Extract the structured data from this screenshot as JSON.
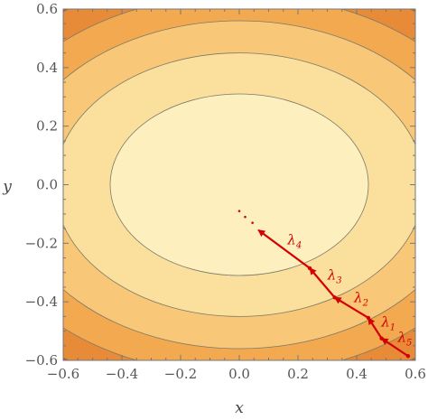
{
  "chart_data": {
    "type": "contour",
    "xlabel": "x",
    "ylabel": "y",
    "xlim": [
      -0.6,
      0.6
    ],
    "ylim": [
      -0.6,
      0.6
    ],
    "xticks": [
      "−0.6",
      "−0.4",
      "−0.2",
      "0.0",
      "0.2",
      "0.4",
      "0.6"
    ],
    "yticks": [
      "−0.6",
      "−0.4",
      "−0.2",
      "0.0",
      "0.2",
      "0.4",
      "0.6"
    ],
    "contours": {
      "center": [
        0.0,
        0.0
      ],
      "semi_axes": [
        [
          0.44,
          0.31
        ],
        [
          0.63,
          0.45
        ],
        [
          0.78,
          0.56
        ],
        [
          0.91,
          0.65
        ],
        [
          1.02,
          0.73
        ]
      ],
      "fill_colors": [
        "#fdf0be",
        "#fbdf9c",
        "#f8c777",
        "#f3a94f",
        "#e88b38",
        "#c85a2a"
      ]
    },
    "path": {
      "color": "#d40000",
      "points": [
        [
          0.575,
          -0.585
        ],
        [
          0.485,
          -0.525
        ],
        [
          0.44,
          -0.455
        ],
        [
          0.325,
          -0.385
        ],
        [
          0.24,
          -0.285
        ],
        [
          0.065,
          -0.155
        ]
      ],
      "step_labels": [
        {
          "symbol": "λ",
          "sub": "5"
        },
        {
          "symbol": "λ",
          "sub": "1"
        },
        {
          "symbol": "λ",
          "sub": "2"
        },
        {
          "symbol": "λ",
          "sub": "3"
        },
        {
          "symbol": "λ",
          "sub": "4"
        }
      ],
      "dots": [
        [
          0.0,
          -0.09
        ],
        [
          0.02,
          -0.11
        ],
        [
          0.045,
          -0.13
        ]
      ]
    }
  }
}
